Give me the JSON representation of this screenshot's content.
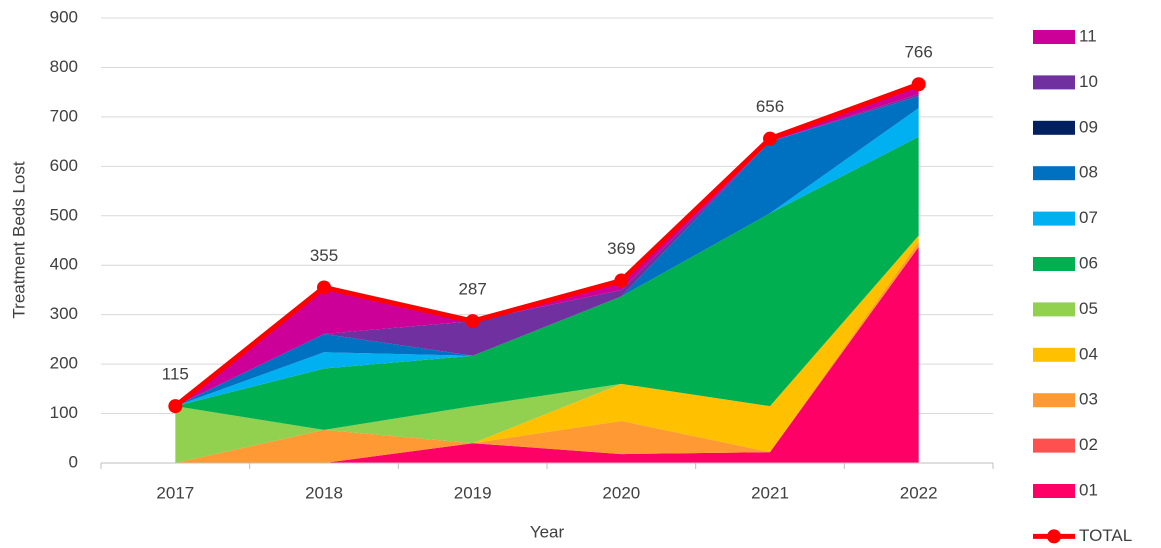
{
  "chart_data": {
    "type": "area",
    "stacked": true,
    "categories": [
      "2017",
      "2018",
      "2019",
      "2020",
      "2021",
      "2022"
    ],
    "y_label": "Treatment Beds Lost",
    "x_label": "Year",
    "ylim": [
      0,
      900
    ],
    "yticks": [
      0,
      100,
      200,
      300,
      400,
      500,
      600,
      700,
      800,
      900
    ],
    "grid": true,
    "legend": "right",
    "series": [
      {
        "name": "01",
        "color": "#ff0066",
        "values": [
          0,
          0,
          40,
          18,
          22,
          437
        ]
      },
      {
        "name": "02",
        "color": "#ff5050",
        "values": [
          0,
          0,
          0,
          0,
          0,
          0
        ]
      },
      {
        "name": "03",
        "color": "#ff9933",
        "values": [
          0,
          67,
          0,
          67,
          0,
          10
        ]
      },
      {
        "name": "04",
        "color": "#ffc000",
        "values": [
          0,
          0,
          0,
          75,
          93,
          13
        ]
      },
      {
        "name": "05",
        "color": "#92d050",
        "values": [
          115,
          0,
          75,
          0,
          0,
          0
        ]
      },
      {
        "name": "06",
        "color": "#00b050",
        "values": [
          0,
          124,
          102,
          177,
          390,
          200
        ]
      },
      {
        "name": "07",
        "color": "#00b0f0",
        "values": [
          0,
          33,
          0,
          0,
          0,
          58
        ]
      },
      {
        "name": "08",
        "color": "#0070c0",
        "values": [
          0,
          37,
          0,
          0,
          145,
          24
        ]
      },
      {
        "name": "09",
        "color": "#002060",
        "values": [
          0,
          0,
          0,
          0,
          0,
          0
        ]
      },
      {
        "name": "10",
        "color": "#7030a0",
        "values": [
          0,
          0,
          70,
          13,
          0,
          4
        ]
      },
      {
        "name": "11",
        "color": "#cc0099",
        "values": [
          0,
          94,
          0,
          19,
          6,
          20
        ]
      }
    ],
    "total": {
      "name": "TOTAL",
      "color": "#ff0000",
      "values": [
        115,
        355,
        287,
        369,
        656,
        766
      ]
    }
  }
}
